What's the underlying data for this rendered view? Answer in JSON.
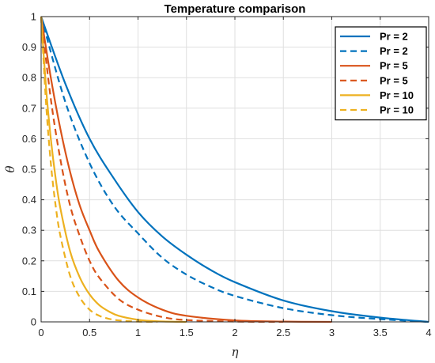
{
  "chart_data": {
    "type": "line",
    "title": "Temperature comparison",
    "xlabel": "η",
    "ylabel": "θ",
    "xlim": [
      0,
      4
    ],
    "ylim": [
      0,
      1
    ],
    "xticks": [
      "0",
      "0.5",
      "1",
      "1.5",
      "2",
      "2.5",
      "3",
      "3.5",
      "4"
    ],
    "yticks": [
      "0",
      "0.1",
      "0.2",
      "0.3",
      "0.4",
      "0.5",
      "0.6",
      "0.7",
      "0.8",
      "0.9",
      "1"
    ],
    "grid": true,
    "legend_position": "top-right",
    "series": [
      {
        "name": "Pr = 2",
        "color": "#0072BD",
        "style": "solid",
        "x": [
          0,
          0.25,
          0.5,
          0.75,
          1,
          1.25,
          1.5,
          1.75,
          2,
          2.5,
          3,
          3.5,
          4
        ],
        "y": [
          1,
          0.78,
          0.6,
          0.47,
          0.36,
          0.28,
          0.22,
          0.17,
          0.13,
          0.07,
          0.035,
          0.014,
          0
        ]
      },
      {
        "name": "Pr = 2",
        "color": "#0072BD",
        "style": "dashed",
        "x": [
          0,
          0.25,
          0.5,
          0.75,
          1,
          1.25,
          1.5,
          1.75,
          2,
          2.5,
          3,
          3.5,
          4
        ],
        "y": [
          1,
          0.72,
          0.52,
          0.38,
          0.29,
          0.21,
          0.155,
          0.115,
          0.085,
          0.045,
          0.022,
          0.009,
          0
        ]
      },
      {
        "name": "Pr = 5",
        "color": "#D95319",
        "style": "solid",
        "x": [
          0,
          0.1,
          0.2,
          0.3,
          0.4,
          0.5,
          0.6,
          0.8,
          1,
          1.25,
          1.5,
          2,
          2.5,
          3
        ],
        "y": [
          1,
          0.8,
          0.63,
          0.49,
          0.38,
          0.3,
          0.23,
          0.135,
          0.08,
          0.04,
          0.02,
          0.005,
          0.001,
          0
        ]
      },
      {
        "name": "Pr = 5",
        "color": "#D95319",
        "style": "dashed",
        "x": [
          0,
          0.1,
          0.2,
          0.3,
          0.4,
          0.5,
          0.6,
          0.8,
          1,
          1.25,
          1.5,
          2,
          2.5
        ],
        "y": [
          1,
          0.73,
          0.53,
          0.38,
          0.28,
          0.2,
          0.145,
          0.075,
          0.04,
          0.016,
          0.006,
          0.001,
          0
        ]
      },
      {
        "name": "Pr = 10",
        "color": "#EDB120",
        "style": "solid",
        "x": [
          0,
          0.05,
          0.1,
          0.15,
          0.2,
          0.3,
          0.4,
          0.5,
          0.6,
          0.7,
          0.8,
          1,
          1.2,
          1.5
        ],
        "y": [
          1,
          0.77,
          0.6,
          0.47,
          0.37,
          0.23,
          0.145,
          0.09,
          0.055,
          0.034,
          0.02,
          0.007,
          0.002,
          0
        ]
      },
      {
        "name": "Pr = 10",
        "color": "#EDB120",
        "style": "dashed",
        "x": [
          0,
          0.05,
          0.1,
          0.15,
          0.2,
          0.3,
          0.4,
          0.5,
          0.6,
          0.7,
          0.8,
          1,
          1.2
        ],
        "y": [
          1,
          0.72,
          0.52,
          0.38,
          0.28,
          0.15,
          0.08,
          0.04,
          0.02,
          0.01,
          0.005,
          0.001,
          0
        ]
      }
    ]
  }
}
